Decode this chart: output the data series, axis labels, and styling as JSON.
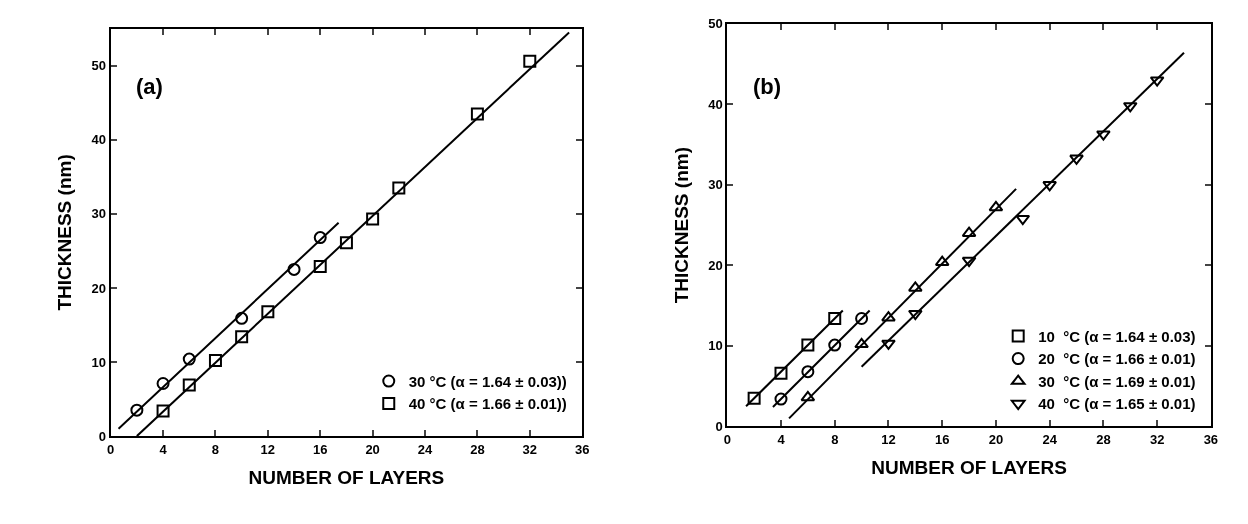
{
  "chart_data": [
    {
      "type": "scatter",
      "xlabel": "NUMBER OF LAYERS",
      "ylabel": "THICKNESS (nm)",
      "annotations": [
        "(a)"
      ],
      "xlim": [
        0,
        36
      ],
      "xticks": [
        0,
        4,
        8,
        12,
        16,
        20,
        24,
        28,
        32,
        36
      ],
      "ylim": [
        0,
        55
      ],
      "yticks": [
        0,
        10,
        20,
        30,
        40,
        50
      ],
      "legend": "bottom right",
      "series": [
        {
          "name": "30 °C (α = 1.64 ± 0.03))",
          "color": "#000000",
          "marker": "circle",
          "x": [
            2,
            4,
            6,
            10,
            14,
            16
          ],
          "values": [
            3.5,
            7.1,
            10.4,
            15.9,
            22.5,
            26.8
          ]
        },
        {
          "name": "40 °C (α = 1.66 ± 0.01))",
          "color": "#000000",
          "marker": "square",
          "x": [
            4,
            6,
            8,
            10,
            12,
            16,
            18,
            20,
            22,
            28,
            32
          ],
          "values": [
            3.4,
            6.9,
            10.2,
            13.4,
            16.8,
            22.9,
            26.1,
            29.3,
            33.5,
            43.5,
            50.6
          ]
        },
        {
          "type": "line",
          "color": "#000000",
          "marker": "none",
          "x": [
            0.6,
            17.4
          ],
          "values": [
            1.0,
            28.8
          ]
        },
        {
          "type": "line",
          "color": "#000000",
          "marker": "none",
          "x": [
            2.0,
            35.0
          ],
          "values": [
            0.0,
            54.5
          ]
        }
      ]
    },
    {
      "type": "scatter",
      "xlabel": "NUMBER OF LAYERS",
      "ylabel": "THICKNESS (nm)",
      "annotations": [
        "(b)"
      ],
      "xlim": [
        0,
        36
      ],
      "xticks": [
        0,
        4,
        8,
        12,
        16,
        20,
        24,
        28,
        32,
        36
      ],
      "ylim": [
        0,
        50
      ],
      "yticks": [
        0,
        10,
        20,
        30,
        40,
        50
      ],
      "legend": "bottom right",
      "series": [
        {
          "name": "10  °C (α = 1.64 ± 0.03)",
          "color": "#000000",
          "marker": "square",
          "x": [
            2,
            4,
            6,
            8
          ],
          "values": [
            3.5,
            6.6,
            10.1,
            13.4
          ]
        },
        {
          "name": "20  °C (α = 1.66 ± 0.01)",
          "color": "#000000",
          "marker": "circle",
          "x": [
            4,
            6,
            8,
            10
          ],
          "values": [
            3.4,
            6.8,
            10.1,
            13.4
          ]
        },
        {
          "name": "30  °C (α = 1.69 ± 0.01)",
          "color": "#000000",
          "marker": "triangle",
          "x": [
            6,
            10,
            12,
            14,
            16,
            18,
            20
          ],
          "values": [
            3.6,
            10.2,
            13.5,
            17.2,
            20.4,
            24.0,
            27.2
          ]
        },
        {
          "name": "40  °C (α = 1.65 ± 0.01)",
          "color": "#000000",
          "marker": "triangle-down",
          "x": [
            12,
            14,
            18,
            22,
            24,
            26,
            28,
            30,
            32
          ],
          "values": [
            10.3,
            14.0,
            20.6,
            25.8,
            30.0,
            33.3,
            36.3,
            39.8,
            43.0
          ]
        },
        {
          "type": "line",
          "color": "#000000",
          "marker": "none",
          "x": [
            1.4,
            8.6
          ],
          "values": [
            2.5,
            14.4
          ]
        },
        {
          "type": "line",
          "color": "#000000",
          "marker": "none",
          "x": [
            3.4,
            10.6
          ],
          "values": [
            2.4,
            14.4
          ]
        },
        {
          "type": "line",
          "color": "#000000",
          "marker": "none",
          "x": [
            4.6,
            21.5
          ],
          "values": [
            1.0,
            29.5
          ]
        },
        {
          "type": "line",
          "color": "#000000",
          "marker": "none",
          "x": [
            10.0,
            34.0
          ],
          "values": [
            7.4,
            46.4
          ]
        }
      ]
    }
  ]
}
